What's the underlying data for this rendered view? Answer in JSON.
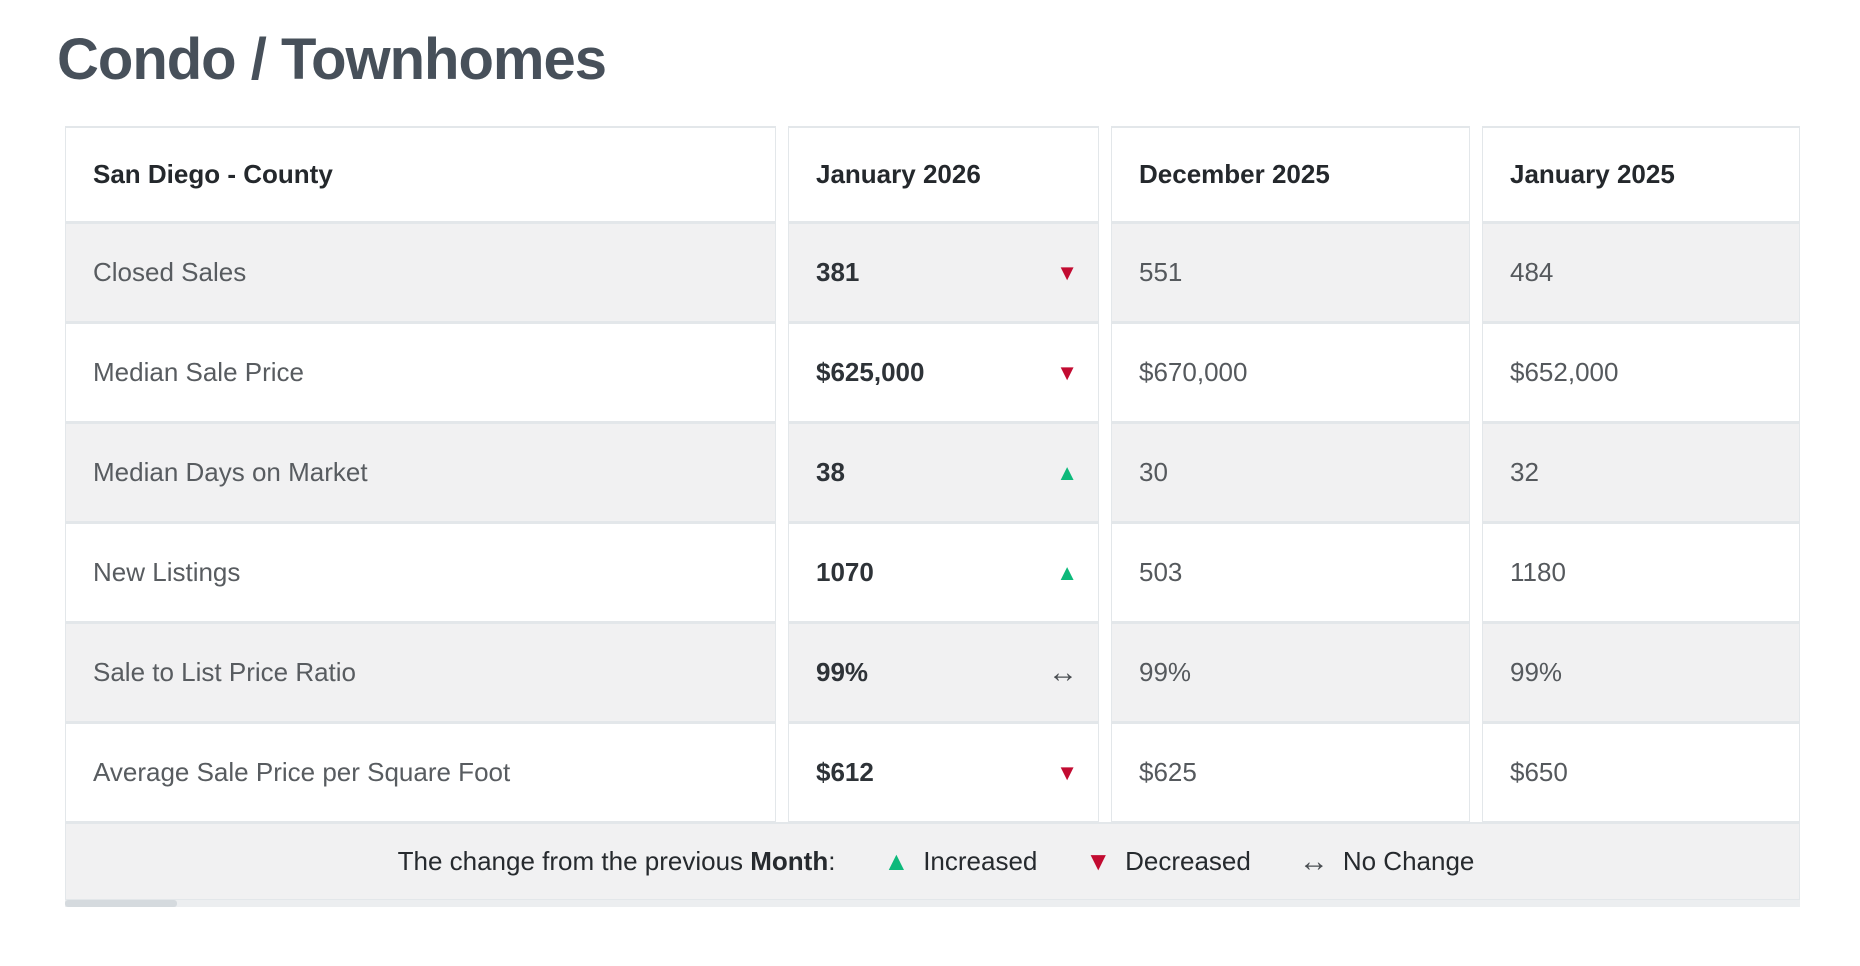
{
  "page_title": "Condo / Townhomes",
  "table": {
    "header": {
      "region": "San Diego - County",
      "current": "January 2026",
      "prev_month": "December 2025",
      "prev_year": "January 2025"
    },
    "rows": [
      {
        "label": "Closed Sales",
        "current": "381",
        "trend": "down",
        "prev_month": "551",
        "prev_year": "484"
      },
      {
        "label": "Median Sale Price",
        "current": "$625,000",
        "trend": "down",
        "prev_month": "$670,000",
        "prev_year": "$652,000"
      },
      {
        "label": "Median Days on Market",
        "current": "38",
        "trend": "up",
        "prev_month": "30",
        "prev_year": "32"
      },
      {
        "label": "New Listings",
        "current": "1070",
        "trend": "up",
        "prev_month": "503",
        "prev_year": "1180"
      },
      {
        "label": "Sale to List Price Ratio",
        "current": "99%",
        "trend": "none",
        "prev_month": "99%",
        "prev_year": "99%"
      },
      {
        "label": "Average Sale Price per Square Foot",
        "current": "$612",
        "trend": "down",
        "prev_month": "$625",
        "prev_year": "$650"
      }
    ],
    "legend": {
      "prefix": "The change from the previous ",
      "bold_word": "Month",
      "colon": ":",
      "increased_label": "Increased",
      "decreased_label": "Decreased",
      "no_change_label": "No Change"
    },
    "symbols": {
      "up": "▲",
      "down": "▼",
      "none": "↔"
    }
  },
  "colors": {
    "title": "#47505a",
    "header_text": "#24282c",
    "label_text": "#585c60",
    "value_bold": "#2e3338",
    "value_text": "#55595d",
    "legend_text": "#262a2e",
    "up": "#0db97b",
    "down": "#c20b31",
    "no_change": "#4a4e52",
    "row_alt_bg": "#f1f1f2",
    "border": "#e3e7ea"
  }
}
